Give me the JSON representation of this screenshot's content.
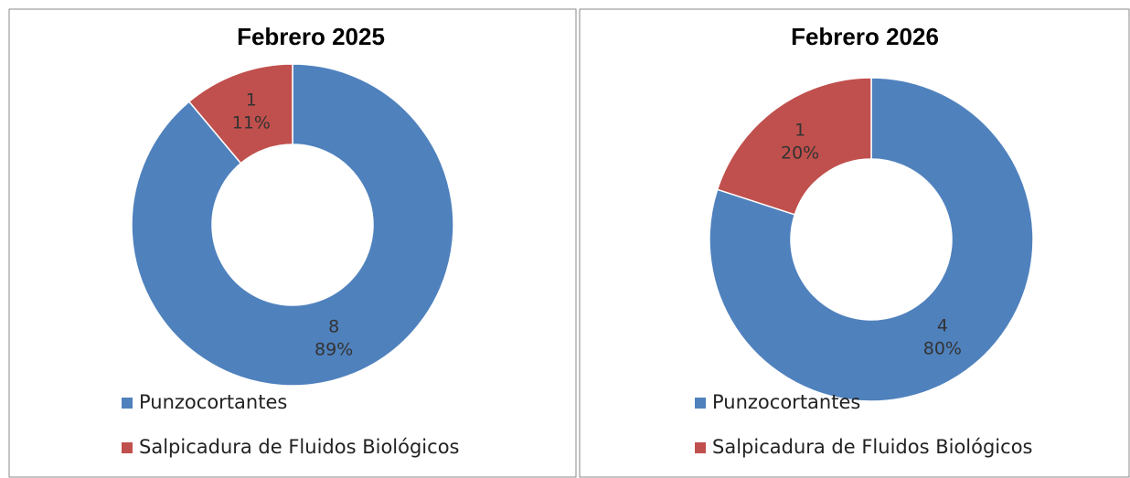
{
  "chart_data": [
    {
      "type": "donut",
      "title": "Febrero 2025",
      "categories": [
        "Punzocortantes",
        "Salpicadura de Fluidos Biológicos"
      ],
      "values": [
        8,
        1
      ],
      "percent_labels": [
        "89%",
        "11%"
      ],
      "colors": [
        "#4f81bd",
        "#c0504d"
      ],
      "legend": "bottom"
    },
    {
      "type": "donut",
      "title": "Febrero 2026",
      "categories": [
        "Punzocortantes",
        "Salpicadura de Fluidos Biológicos"
      ],
      "values": [
        4,
        1
      ],
      "percent_labels": [
        "80%",
        "20%"
      ],
      "colors": [
        "#4f81bd",
        "#c0504d"
      ],
      "legend": "bottom"
    }
  ]
}
